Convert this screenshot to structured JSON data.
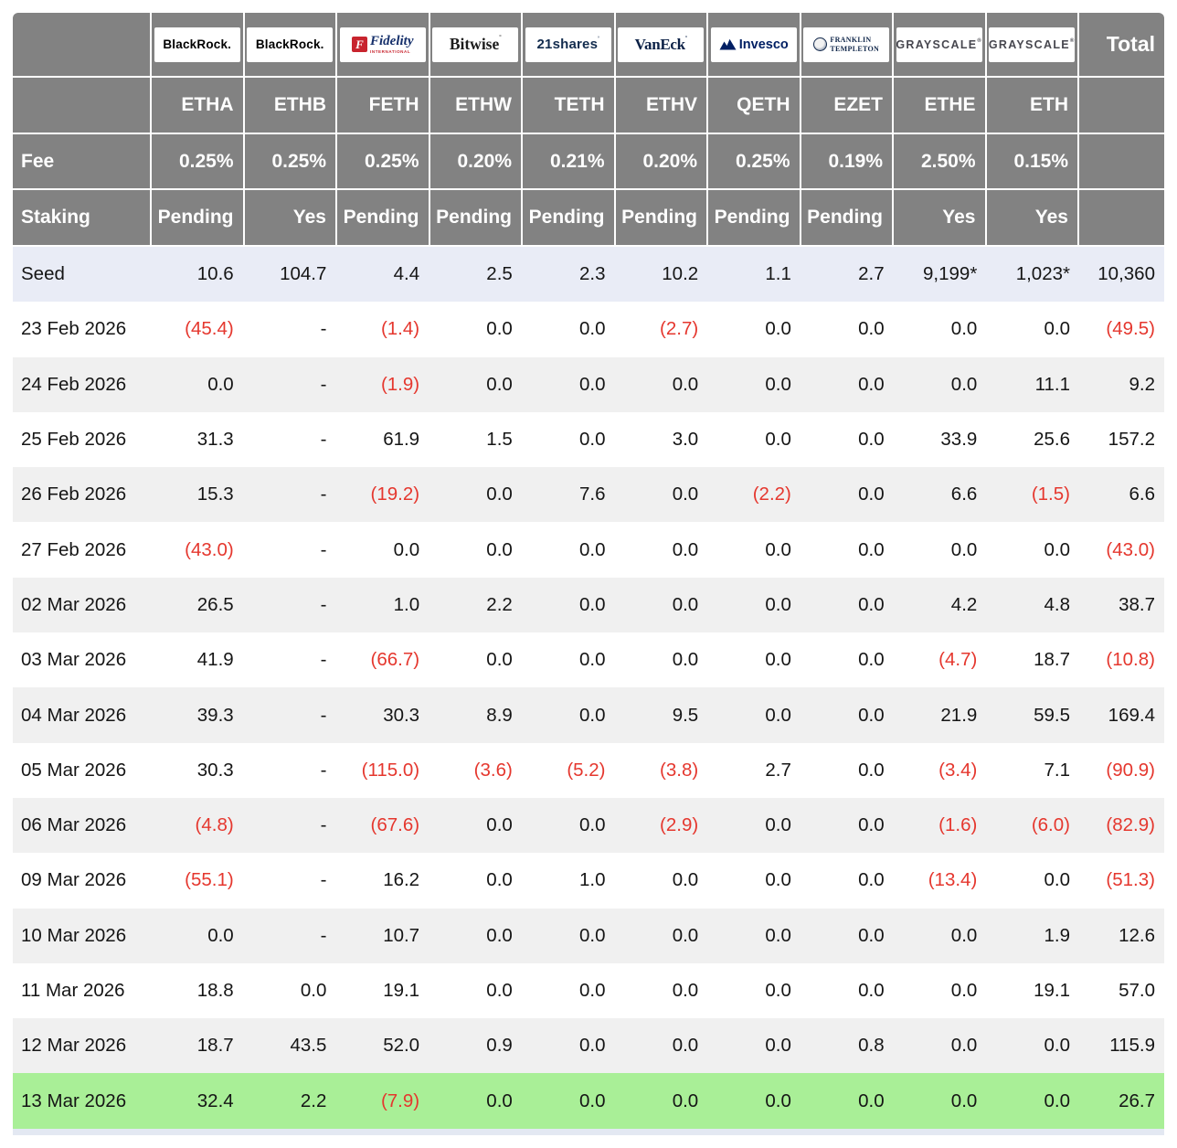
{
  "table": {
    "total_header": "Total",
    "row_header_labels": {
      "fee": "Fee",
      "staking": "Staking"
    },
    "columns": [
      {
        "provider": "BlackRock",
        "ticker": "ETHA",
        "fee": "0.25%",
        "staking": "Pending",
        "logo": {
          "type": "blackrock",
          "text": "BlackRock."
        }
      },
      {
        "provider": "BlackRock",
        "ticker": "ETHB",
        "fee": "0.25%",
        "staking": "Yes",
        "logo": {
          "type": "blackrock",
          "text": "BlackRock."
        }
      },
      {
        "provider": "Fidelity",
        "ticker": "FETH",
        "fee": "0.25%",
        "staking": "Pending",
        "logo": {
          "type": "fidelity",
          "mark": "F",
          "text": "Fidelity",
          "subtext": "INTERNATIONAL"
        }
      },
      {
        "provider": "Bitwise",
        "ticker": "ETHW",
        "fee": "0.20%",
        "staking": "Pending",
        "logo": {
          "type": "bitwise",
          "text": "Bitwise",
          "mark": "°"
        }
      },
      {
        "provider": "21shares",
        "ticker": "TETH",
        "fee": "0.21%",
        "staking": "Pending",
        "logo": {
          "type": "21shares",
          "text": "21shares",
          "mark": "ʼ"
        }
      },
      {
        "provider": "VanEck",
        "ticker": "ETHV",
        "fee": "0.20%",
        "staking": "Pending",
        "logo": {
          "type": "vaneck",
          "text": "VanEck",
          "mark": "°"
        }
      },
      {
        "provider": "Invesco",
        "ticker": "QETH",
        "fee": "0.25%",
        "staking": "Pending",
        "logo": {
          "type": "invesco",
          "text": "Invesco"
        }
      },
      {
        "provider": "Franklin Templeton",
        "ticker": "EZET",
        "fee": "0.19%",
        "staking": "Pending",
        "logo": {
          "type": "franklin",
          "text": "FRANKLIN",
          "subtext": "TEMPLETON"
        }
      },
      {
        "provider": "Grayscale",
        "ticker": "ETHE",
        "fee": "2.50%",
        "staking": "Yes",
        "logo": {
          "type": "grayscale",
          "text": "GRAYSCALE",
          "mark": "®"
        }
      },
      {
        "provider": "Grayscale",
        "ticker": "ETH",
        "fee": "0.15%",
        "staking": "Yes",
        "logo": {
          "type": "grayscale",
          "text": "GRAYSCALE",
          "mark": "®"
        }
      }
    ],
    "rows": [
      {
        "label": "Seed",
        "bg": "seed",
        "values": [
          "10.6",
          "104.7",
          "4.4",
          "2.5",
          "2.3",
          "10.2",
          "1.1",
          "2.7",
          "9,199*",
          "1,023*"
        ],
        "total": "10,360"
      },
      {
        "label": "23 Feb 2026",
        "bg": "white",
        "values": [
          "(45.4)",
          "-",
          "(1.4)",
          "0.0",
          "0.0",
          "(2.7)",
          "0.0",
          "0.0",
          "0.0",
          "0.0"
        ],
        "total": "(49.5)"
      },
      {
        "label": "24 Feb 2026",
        "bg": "gray",
        "values": [
          "0.0",
          "-",
          "(1.9)",
          "0.0",
          "0.0",
          "0.0",
          "0.0",
          "0.0",
          "0.0",
          "11.1"
        ],
        "total": "9.2"
      },
      {
        "label": "25 Feb 2026",
        "bg": "white",
        "values": [
          "31.3",
          "-",
          "61.9",
          "1.5",
          "0.0",
          "3.0",
          "0.0",
          "0.0",
          "33.9",
          "25.6"
        ],
        "total": "157.2"
      },
      {
        "label": "26 Feb 2026",
        "bg": "gray",
        "values": [
          "15.3",
          "-",
          "(19.2)",
          "0.0",
          "7.6",
          "0.0",
          "(2.2)",
          "0.0",
          "6.6",
          "(1.5)"
        ],
        "total": "6.6"
      },
      {
        "label": "27 Feb 2026",
        "bg": "white",
        "values": [
          "(43.0)",
          "-",
          "0.0",
          "0.0",
          "0.0",
          "0.0",
          "0.0",
          "0.0",
          "0.0",
          "0.0"
        ],
        "total": "(43.0)"
      },
      {
        "label": "02 Mar 2026",
        "bg": "gray",
        "values": [
          "26.5",
          "-",
          "1.0",
          "2.2",
          "0.0",
          "0.0",
          "0.0",
          "0.0",
          "4.2",
          "4.8"
        ],
        "total": "38.7"
      },
      {
        "label": "03 Mar 2026",
        "bg": "white",
        "values": [
          "41.9",
          "-",
          "(66.7)",
          "0.0",
          "0.0",
          "0.0",
          "0.0",
          "0.0",
          "(4.7)",
          "18.7"
        ],
        "total": "(10.8)"
      },
      {
        "label": "04 Mar 2026",
        "bg": "gray",
        "values": [
          "39.3",
          "-",
          "30.3",
          "8.9",
          "0.0",
          "9.5",
          "0.0",
          "0.0",
          "21.9",
          "59.5"
        ],
        "total": "169.4"
      },
      {
        "label": "05 Mar 2026",
        "bg": "white",
        "values": [
          "30.3",
          "-",
          "(115.0)",
          "(3.6)",
          "(5.2)",
          "(3.8)",
          "2.7",
          "0.0",
          "(3.4)",
          "7.1"
        ],
        "total": "(90.9)"
      },
      {
        "label": "06 Mar 2026",
        "bg": "gray",
        "values": [
          "(4.8)",
          "-",
          "(67.6)",
          "0.0",
          "0.0",
          "(2.9)",
          "0.0",
          "0.0",
          "(1.6)",
          "(6.0)"
        ],
        "total": "(82.9)"
      },
      {
        "label": "09 Mar 2026",
        "bg": "white",
        "values": [
          "(55.1)",
          "-",
          "16.2",
          "0.0",
          "1.0",
          "0.0",
          "0.0",
          "0.0",
          "(13.4)",
          "0.0"
        ],
        "total": "(51.3)"
      },
      {
        "label": "10 Mar 2026",
        "bg": "gray",
        "values": [
          "0.0",
          "-",
          "10.7",
          "0.0",
          "0.0",
          "0.0",
          "0.0",
          "0.0",
          "0.0",
          "1.9"
        ],
        "total": "12.6"
      },
      {
        "label": "11 Mar 2026",
        "bg": "white",
        "values": [
          "18.8",
          "0.0",
          "19.1",
          "0.0",
          "0.0",
          "0.0",
          "0.0",
          "0.0",
          "0.0",
          "19.1"
        ],
        "total": "57.0"
      },
      {
        "label": "12 Mar 2026",
        "bg": "gray",
        "values": [
          "18.7",
          "43.5",
          "52.0",
          "0.9",
          "0.0",
          "0.0",
          "0.0",
          "0.8",
          "0.0",
          "0.0"
        ],
        "total": "115.9"
      },
      {
        "label": "13 Mar 2026",
        "bg": "green",
        "values": [
          "32.4",
          "2.2",
          "(7.9)",
          "0.0",
          "0.0",
          "0.0",
          "0.0",
          "0.0",
          "0.0",
          "0.0"
        ],
        "total": "26.7"
      }
    ]
  },
  "colors": {
    "header_bg": "#828282",
    "seed_row_bg": "#e9ecf6",
    "alt_row_bg": "#f0f0f0",
    "green_row_bg": "#a9ef97",
    "negative_text": "#e5372e",
    "text": "#151515",
    "partial_row_bg": "#e3e8f2"
  },
  "chart_data": {
    "type": "table",
    "columns": [
      "ETHA",
      "ETHB",
      "FETH",
      "ETHW",
      "TETH",
      "ETHV",
      "QETH",
      "EZET",
      "ETHE",
      "ETH",
      "Total"
    ],
    "providers": [
      "BlackRock",
      "BlackRock",
      "Fidelity",
      "Bitwise",
      "21shares",
      "VanEck",
      "Invesco",
      "Franklin Templeton",
      "Grayscale",
      "Grayscale"
    ],
    "fee_row": [
      "0.25%",
      "0.25%",
      "0.25%",
      "0.20%",
      "0.21%",
      "0.20%",
      "0.25%",
      "0.19%",
      "2.50%",
      "0.15%"
    ],
    "staking_row": [
      "Pending",
      "Yes",
      "Pending",
      "Pending",
      "Pending",
      "Pending",
      "Pending",
      "Pending",
      "Yes",
      "Yes"
    ],
    "rows": [
      {
        "label": "Seed",
        "values": [
          10.6,
          104.7,
          4.4,
          2.5,
          2.3,
          10.2,
          1.1,
          2.7,
          9199,
          1023
        ],
        "total": 10360,
        "note": "ETHE and ETH seed values carry an asterisk footnote"
      },
      {
        "label": "23 Feb 2026",
        "values": [
          -45.4,
          null,
          -1.4,
          0.0,
          0.0,
          -2.7,
          0.0,
          0.0,
          0.0,
          0.0
        ],
        "total": -49.5
      },
      {
        "label": "24 Feb 2026",
        "values": [
          0.0,
          null,
          -1.9,
          0.0,
          0.0,
          0.0,
          0.0,
          0.0,
          0.0,
          11.1
        ],
        "total": 9.2
      },
      {
        "label": "25 Feb 2026",
        "values": [
          31.3,
          null,
          61.9,
          1.5,
          0.0,
          3.0,
          0.0,
          0.0,
          33.9,
          25.6
        ],
        "total": 157.2
      },
      {
        "label": "26 Feb 2026",
        "values": [
          15.3,
          null,
          -19.2,
          0.0,
          7.6,
          0.0,
          -2.2,
          0.0,
          6.6,
          -1.5
        ],
        "total": 6.6
      },
      {
        "label": "27 Feb 2026",
        "values": [
          -43.0,
          null,
          0.0,
          0.0,
          0.0,
          0.0,
          0.0,
          0.0,
          0.0,
          0.0
        ],
        "total": -43.0
      },
      {
        "label": "02 Mar 2026",
        "values": [
          26.5,
          null,
          1.0,
          2.2,
          0.0,
          0.0,
          0.0,
          0.0,
          4.2,
          4.8
        ],
        "total": 38.7
      },
      {
        "label": "03 Mar 2026",
        "values": [
          41.9,
          null,
          -66.7,
          0.0,
          0.0,
          0.0,
          0.0,
          0.0,
          -4.7,
          18.7
        ],
        "total": -10.8
      },
      {
        "label": "04 Mar 2026",
        "values": [
          39.3,
          null,
          30.3,
          8.9,
          0.0,
          9.5,
          0.0,
          0.0,
          21.9,
          59.5
        ],
        "total": 169.4
      },
      {
        "label": "05 Mar 2026",
        "values": [
          30.3,
          null,
          -115.0,
          -3.6,
          -5.2,
          -3.8,
          2.7,
          0.0,
          -3.4,
          7.1
        ],
        "total": -90.9
      },
      {
        "label": "06 Mar 2026",
        "values": [
          -4.8,
          null,
          -67.6,
          0.0,
          0.0,
          -2.9,
          0.0,
          0.0,
          -1.6,
          -6.0
        ],
        "total": -82.9
      },
      {
        "label": "09 Mar 2026",
        "values": [
          -55.1,
          null,
          16.2,
          0.0,
          1.0,
          0.0,
          0.0,
          0.0,
          -13.4,
          0.0
        ],
        "total": -51.3
      },
      {
        "label": "10 Mar 2026",
        "values": [
          0.0,
          null,
          10.7,
          0.0,
          0.0,
          0.0,
          0.0,
          0.0,
          0.0,
          1.9
        ],
        "total": 12.6
      },
      {
        "label": "11 Mar 2026",
        "values": [
          18.8,
          0.0,
          19.1,
          0.0,
          0.0,
          0.0,
          0.0,
          0.0,
          0.0,
          19.1
        ],
        "total": 57.0
      },
      {
        "label": "12 Mar 2026",
        "values": [
          18.7,
          43.5,
          52.0,
          0.9,
          0.0,
          0.0,
          0.0,
          0.8,
          0.0,
          0.0
        ],
        "total": 115.9
      },
      {
        "label": "13 Mar 2026",
        "values": [
          32.4,
          2.2,
          -7.9,
          0.0,
          0.0,
          0.0,
          0.0,
          0.0,
          0.0,
          0.0
        ],
        "total": 26.7,
        "highlight": "green"
      }
    ]
  }
}
